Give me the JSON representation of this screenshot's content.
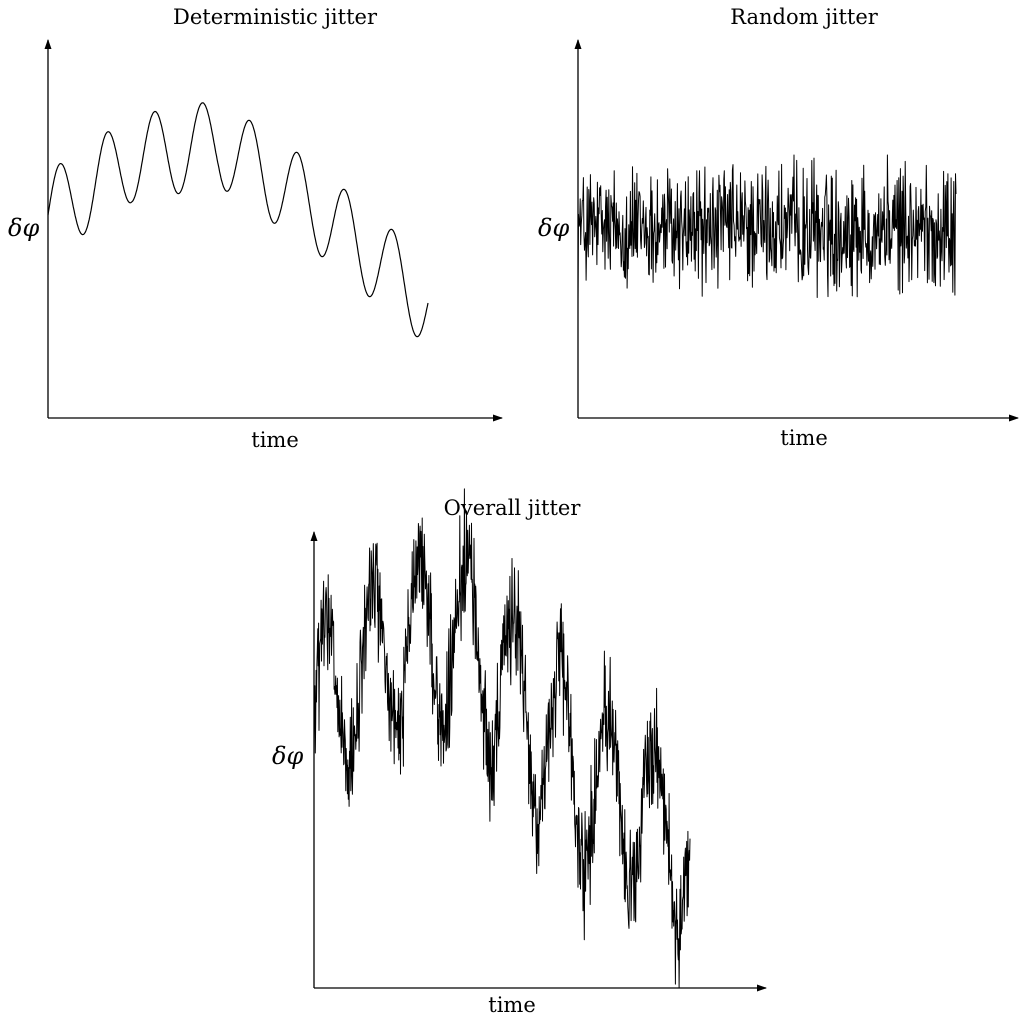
{
  "chart_data": [
    {
      "type": "line",
      "title": "Deterministic jitter",
      "xlabel": "time",
      "ylabel": "δφ",
      "grid": false,
      "legend": "none",
      "signal": {
        "kind": "sinusoid-with-drift",
        "cycles": 8,
        "amplitude": 0.27,
        "drift": [
          {
            "t": 0,
            "v": 0
          },
          {
            "t": 0.22,
            "v": 0.35
          },
          {
            "t": 0.45,
            "v": 0.45
          },
          {
            "t": 0.7,
            "v": 0.05
          },
          {
            "t": 1.0,
            "v": -0.55
          }
        ]
      }
    },
    {
      "type": "line",
      "title": "Random jitter",
      "xlabel": "time",
      "ylabel": "δφ",
      "grid": false,
      "legend": "none",
      "signal": {
        "kind": "bounded-noise",
        "samples": 700,
        "range": [
          -0.25,
          0.25
        ]
      }
    },
    {
      "type": "line",
      "title": "Overall jitter",
      "xlabel": "time",
      "ylabel": "δφ",
      "grid": false,
      "legend": "none",
      "signal": {
        "kind": "sinusoid-with-drift-plus-noise",
        "cycles": 8,
        "amplitude": 0.35,
        "noise": 0.22,
        "samples": 900,
        "drift": [
          {
            "t": 0,
            "v": 0.05
          },
          {
            "t": 0.2,
            "v": 0.35
          },
          {
            "t": 0.4,
            "v": 0.4
          },
          {
            "t": 0.7,
            "v": -0.15
          },
          {
            "t": 1.0,
            "v": -0.45
          }
        ]
      }
    }
  ]
}
